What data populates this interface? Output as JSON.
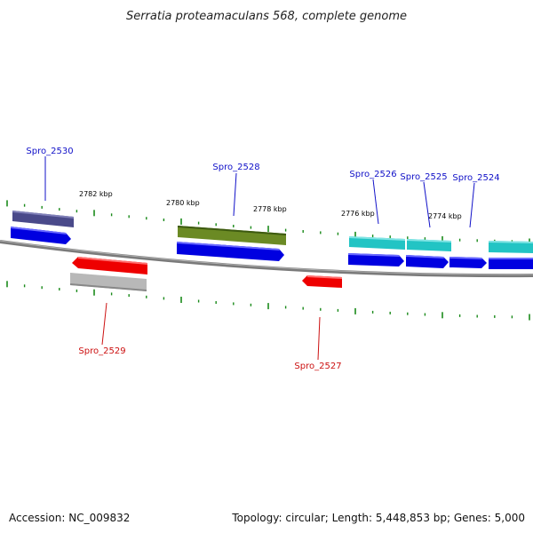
{
  "title": "Serratia proteamaculans 568, complete genome",
  "footer": {
    "accession": "Accession: NC_009832",
    "summary": "Topology: circular; Length: 5,448,853 bp; Genes: 5,000"
  },
  "colors": {
    "backbone": "#808080",
    "tick": "#1a8a1a",
    "label_top": "#1010c8",
    "label_bottom": "#cc1010"
  },
  "scale_labels": {
    "k2782": "2782 kbp",
    "k2780": "2780 kbp",
    "k2778": "2778 kbp",
    "k2776": "2776 kbp",
    "k2774": "2774 kbp"
  },
  "gene_labels": {
    "spro_2530": "Spro_2530",
    "spro_2528": "Spro_2528",
    "spro_2526": "Spro_2526",
    "spro_2525": "Spro_2525",
    "spro_2524": "Spro_2524",
    "spro_2529": "Spro_2529",
    "spro_2527": "Spro_2527"
  }
}
